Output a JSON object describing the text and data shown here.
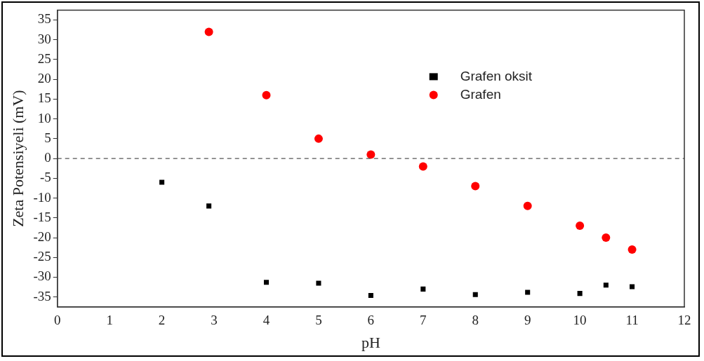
{
  "chart_data": {
    "type": "scatter",
    "xlabel": "pH",
    "ylabel": "Zeta Potensiyeli (mV)",
    "xlim": [
      0,
      12
    ],
    "xticks": [
      0,
      1,
      2,
      3,
      4,
      5,
      6,
      7,
      8,
      9,
      10,
      11,
      12
    ],
    "ylim": [
      -37.5,
      37.5
    ],
    "yticks": [
      -35,
      -30,
      -25,
      -20,
      -15,
      -10,
      -5,
      0,
      5,
      10,
      15,
      20,
      25,
      30,
      35
    ],
    "grid": false,
    "legend": "top right",
    "ref_lines": [
      {
        "axis": "y",
        "value": 0,
        "color": "#555555",
        "line_style": "dashed"
      }
    ],
    "series": [
      {
        "name": "Grafen oksit",
        "color": "#000000",
        "marker": "square",
        "x": [
          2,
          2.9,
          4,
          5,
          6,
          7,
          8,
          9,
          10,
          10.5,
          11
        ],
        "values": [
          -6,
          -12,
          -31.3,
          -31.5,
          -34.6,
          -33,
          -34.4,
          -33.8,
          -34.1,
          -32,
          -32.4
        ]
      },
      {
        "name": "Grafen",
        "color": "#ff0000",
        "marker": "circle",
        "x": [
          2.9,
          4,
          5,
          6,
          7,
          8,
          9,
          10,
          10.5,
          11
        ],
        "values": [
          32,
          16,
          5,
          1,
          -2,
          -7,
          -12,
          -17,
          -20,
          -23
        ]
      }
    ]
  }
}
